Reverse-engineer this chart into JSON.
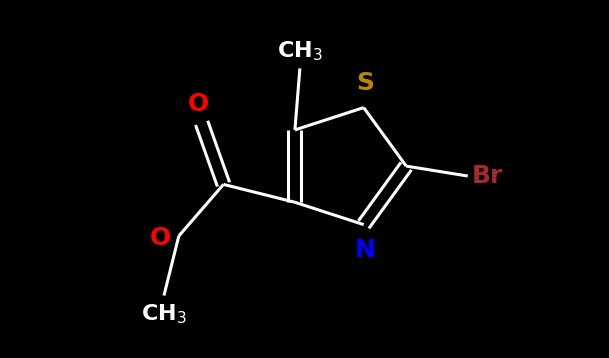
{
  "bg_color": "#000000",
  "bond_color": "#ffffff",
  "O_color": "#ff0000",
  "N_color": "#0000ff",
  "S_color": "#b8860b",
  "Br_color": "#a52a2a",
  "line_width": 2.2,
  "font_size": 16,
  "fig_w": 6.09,
  "fig_h": 3.58,
  "dpi": 100,
  "xlim": [
    0,
    6.09
  ],
  "ylim": [
    0,
    3.58
  ]
}
